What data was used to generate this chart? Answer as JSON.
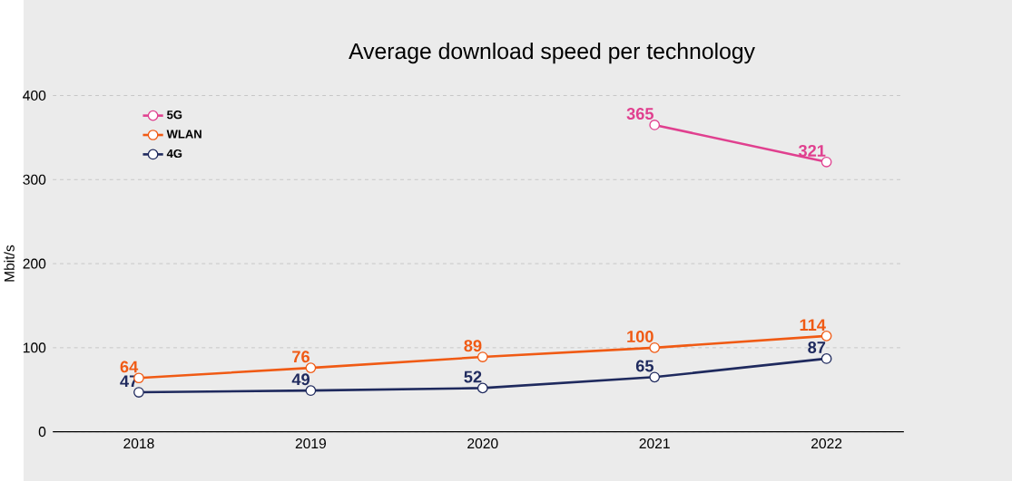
{
  "chart_data": {
    "type": "line",
    "title": "Average download speed per technology",
    "ylabel": "Mbit/s",
    "categories": [
      "2018",
      "2019",
      "2020",
      "2021",
      "2022"
    ],
    "series": [
      {
        "name": "5G",
        "color": "#e0408f",
        "values": [
          null,
          null,
          null,
          365,
          321
        ]
      },
      {
        "name": "WLAN",
        "color": "#f05a14",
        "values": [
          64,
          76,
          89,
          100,
          114
        ]
      },
      {
        "name": "4G",
        "color": "#1f2a5e",
        "values": [
          47,
          49,
          52,
          65,
          87
        ]
      }
    ],
    "ylim": [
      0,
      400
    ],
    "yticks": [
      0,
      100,
      200,
      300,
      400
    ],
    "grid": "y",
    "legend": "top left",
    "marker": "circle",
    "line_style": "solid",
    "data_labels": true
  }
}
